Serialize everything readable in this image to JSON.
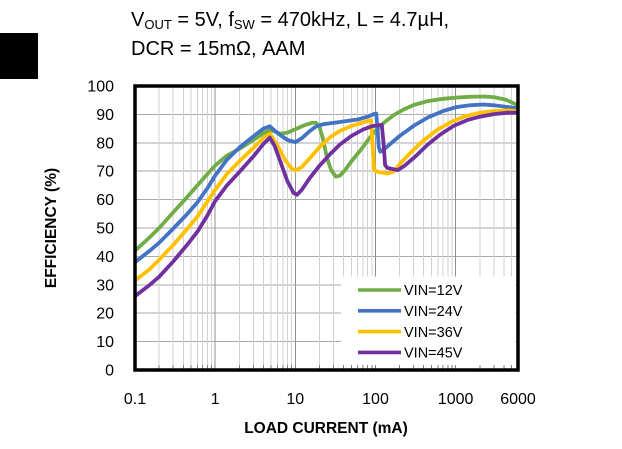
{
  "page": {
    "background": "#ffffff",
    "tab_marker_color": "#000000"
  },
  "title": {
    "plain": "VOUT = 5V, fSW = 470kHz, L = 4.7µH, DCR = 15mΩ, AAM",
    "segments": [
      {
        "text": "V"
      },
      {
        "text": "OUT",
        "sub": true
      },
      {
        "text": " = 5V, f"
      },
      {
        "text": "SW",
        "sub": true
      },
      {
        "text": " = 470kHz, L = 4.7µH,"
      },
      {
        "text": "DCR = 15mΩ, AAM",
        "newline": true
      }
    ]
  },
  "chart_data": {
    "type": "line",
    "title": "VOUT = 5V, fSW = 470kHz, L = 4.7µH, DCR = 15mΩ, AAM",
    "xlabel": "LOAD CURRENT (mA)",
    "ylabel": "EFFICIENCY (%)",
    "x_scale": "log",
    "xlim": [
      0.1,
      6000
    ],
    "ylim": [
      0,
      100
    ],
    "x_ticks": {
      "values": [
        0.1,
        1,
        10,
        100,
        1000,
        6000
      ],
      "labels": [
        "0.1",
        "1",
        "10",
        "100",
        "1000",
        "6000"
      ]
    },
    "y_ticks": {
      "values": [
        0,
        10,
        20,
        30,
        40,
        50,
        60,
        70,
        80,
        90,
        100
      ],
      "labels": [
        "0",
        "10",
        "20",
        "30",
        "40",
        "50",
        "60",
        "70",
        "80",
        "90",
        "100"
      ]
    },
    "grid": {
      "horizontal_major": true,
      "vertical_major": true,
      "vertical_log_minor": true,
      "color_horizontal": "#a9a9a9",
      "color_vertical_major": "#8f8f8f",
      "color_vertical_minor": "#d2d2d2",
      "tick_stub_color": "#7f7f7f"
    },
    "legend_position": "lower right",
    "axis_color": "#000000",
    "series": [
      {
        "name": "VIN=12V",
        "color": "#70AD47",
        "points": [
          [
            0.1,
            42
          ],
          [
            0.15,
            46.5
          ],
          [
            0.2,
            50
          ],
          [
            0.3,
            55.5
          ],
          [
            0.45,
            61
          ],
          [
            0.6,
            65
          ],
          [
            0.8,
            69
          ],
          [
            1,
            72
          ],
          [
            1.4,
            75.5
          ],
          [
            2,
            77.8
          ],
          [
            3,
            81
          ],
          [
            4,
            83.4
          ],
          [
            4.8,
            84.4
          ],
          [
            5.5,
            84
          ],
          [
            6.5,
            83.2
          ],
          [
            8,
            83.6
          ],
          [
            10,
            84.8
          ],
          [
            13,
            86.2
          ],
          [
            16,
            87
          ],
          [
            18,
            87.1
          ],
          [
            20,
            85.8
          ],
          [
            22,
            81.5
          ],
          [
            25,
            74.5
          ],
          [
            28,
            70.3
          ],
          [
            32,
            68.1
          ],
          [
            36,
            68.4
          ],
          [
            42,
            70.5
          ],
          [
            50,
            73.4
          ],
          [
            65,
            77.4
          ],
          [
            80,
            80.8
          ],
          [
            100,
            84.3
          ],
          [
            130,
            87.3
          ],
          [
            170,
            89.8
          ],
          [
            220,
            91.6
          ],
          [
            300,
            93.3
          ],
          [
            450,
            94.7
          ],
          [
            700,
            95.5
          ],
          [
            1000,
            95.9
          ],
          [
            1500,
            96.2
          ],
          [
            2200,
            96.3
          ],
          [
            3000,
            96.1
          ],
          [
            4200,
            95.2
          ],
          [
            6000,
            93.2
          ]
        ]
      },
      {
        "name": "VIN=24V",
        "color": "#4472C4",
        "points": [
          [
            0.1,
            38
          ],
          [
            0.15,
            41.8
          ],
          [
            0.2,
            44.8
          ],
          [
            0.3,
            49.8
          ],
          [
            0.45,
            55
          ],
          [
            0.6,
            59
          ],
          [
            0.8,
            64
          ],
          [
            1,
            68.5
          ],
          [
            1.4,
            74
          ],
          [
            2,
            78.3
          ],
          [
            3,
            82.3
          ],
          [
            4,
            85
          ],
          [
            4.8,
            85.8
          ],
          [
            6,
            83.4
          ],
          [
            8,
            81
          ],
          [
            10,
            80.2
          ],
          [
            12,
            81.6
          ],
          [
            15,
            84
          ],
          [
            18,
            85.7
          ],
          [
            22,
            86.5
          ],
          [
            30,
            87
          ],
          [
            45,
            87.7
          ],
          [
            60,
            88.2
          ],
          [
            80,
            89.2
          ],
          [
            95,
            90.1
          ],
          [
            102,
            90.3
          ],
          [
            106,
            85
          ],
          [
            110,
            78.5
          ],
          [
            115,
            76.9
          ],
          [
            125,
            77.4
          ],
          [
            150,
            79.4
          ],
          [
            200,
            82.4
          ],
          [
            300,
            86
          ],
          [
            450,
            88.9
          ],
          [
            700,
            91.2
          ],
          [
            1000,
            92.5
          ],
          [
            1500,
            93.2
          ],
          [
            2200,
            93.5
          ],
          [
            3000,
            93.2
          ],
          [
            4200,
            92.7
          ],
          [
            6000,
            92.1
          ]
        ]
      },
      {
        "name": "VIN=36V",
        "color": "#FFC000",
        "points": [
          [
            0.1,
            31.5
          ],
          [
            0.15,
            35.3
          ],
          [
            0.2,
            38.8
          ],
          [
            0.3,
            44
          ],
          [
            0.45,
            49.8
          ],
          [
            0.6,
            54
          ],
          [
            0.8,
            59.3
          ],
          [
            1,
            63.5
          ],
          [
            1.4,
            69
          ],
          [
            2,
            73.5
          ],
          [
            3,
            78.2
          ],
          [
            4,
            81.8
          ],
          [
            4.8,
            83.2
          ],
          [
            6,
            79
          ],
          [
            7.5,
            73.8
          ],
          [
            9,
            70.9
          ],
          [
            10,
            70.3
          ],
          [
            12,
            71.4
          ],
          [
            15,
            74.4
          ],
          [
            20,
            78.4
          ],
          [
            27,
            81.9
          ],
          [
            36,
            84.2
          ],
          [
            50,
            85.9
          ],
          [
            65,
            86.9
          ],
          [
            80,
            87.7
          ],
          [
            88,
            87.9
          ],
          [
            92,
            79
          ],
          [
            96,
            70.4
          ],
          [
            110,
            69.7
          ],
          [
            140,
            69.2
          ],
          [
            170,
            69.9
          ],
          [
            205,
            72.8
          ],
          [
            280,
            76.8
          ],
          [
            400,
            80.9
          ],
          [
            600,
            84.7
          ],
          [
            900,
            87.5
          ],
          [
            1300,
            89.3
          ],
          [
            2000,
            90.6
          ],
          [
            3000,
            91.2
          ],
          [
            4500,
            91.4
          ],
          [
            6000,
            91.2
          ]
        ]
      },
      {
        "name": "VIN=45V",
        "color": "#7030A0",
        "points": [
          [
            0.1,
            26
          ],
          [
            0.15,
            29.8
          ],
          [
            0.2,
            32.8
          ],
          [
            0.3,
            38.2
          ],
          [
            0.45,
            44.2
          ],
          [
            0.6,
            48.7
          ],
          [
            0.8,
            54.4
          ],
          [
            1,
            59.5
          ],
          [
            1.4,
            65
          ],
          [
            2,
            69.7
          ],
          [
            3,
            75.2
          ],
          [
            4,
            79.6
          ],
          [
            4.8,
            81.8
          ],
          [
            5.5,
            79
          ],
          [
            6.5,
            73.4
          ],
          [
            8,
            66.4
          ],
          [
            9.5,
            62.4
          ],
          [
            10.5,
            61.7
          ],
          [
            12,
            63.4
          ],
          [
            15,
            67.4
          ],
          [
            20,
            71.9
          ],
          [
            27,
            75.9
          ],
          [
            36,
            79.4
          ],
          [
            50,
            82.4
          ],
          [
            70,
            84.7
          ],
          [
            90,
            85.8
          ],
          [
            110,
            86.2
          ],
          [
            120,
            86.3
          ],
          [
            126,
            80
          ],
          [
            132,
            72.2
          ],
          [
            140,
            71.2
          ],
          [
            160,
            70.8
          ],
          [
            190,
            70.4
          ],
          [
            230,
            71.9
          ],
          [
            320,
            75.4
          ],
          [
            450,
            79.4
          ],
          [
            650,
            83
          ],
          [
            950,
            86
          ],
          [
            1400,
            88
          ],
          [
            2000,
            89.2
          ],
          [
            3000,
            90.1
          ],
          [
            4500,
            90.6
          ],
          [
            6000,
            90.6
          ]
        ]
      }
    ]
  }
}
